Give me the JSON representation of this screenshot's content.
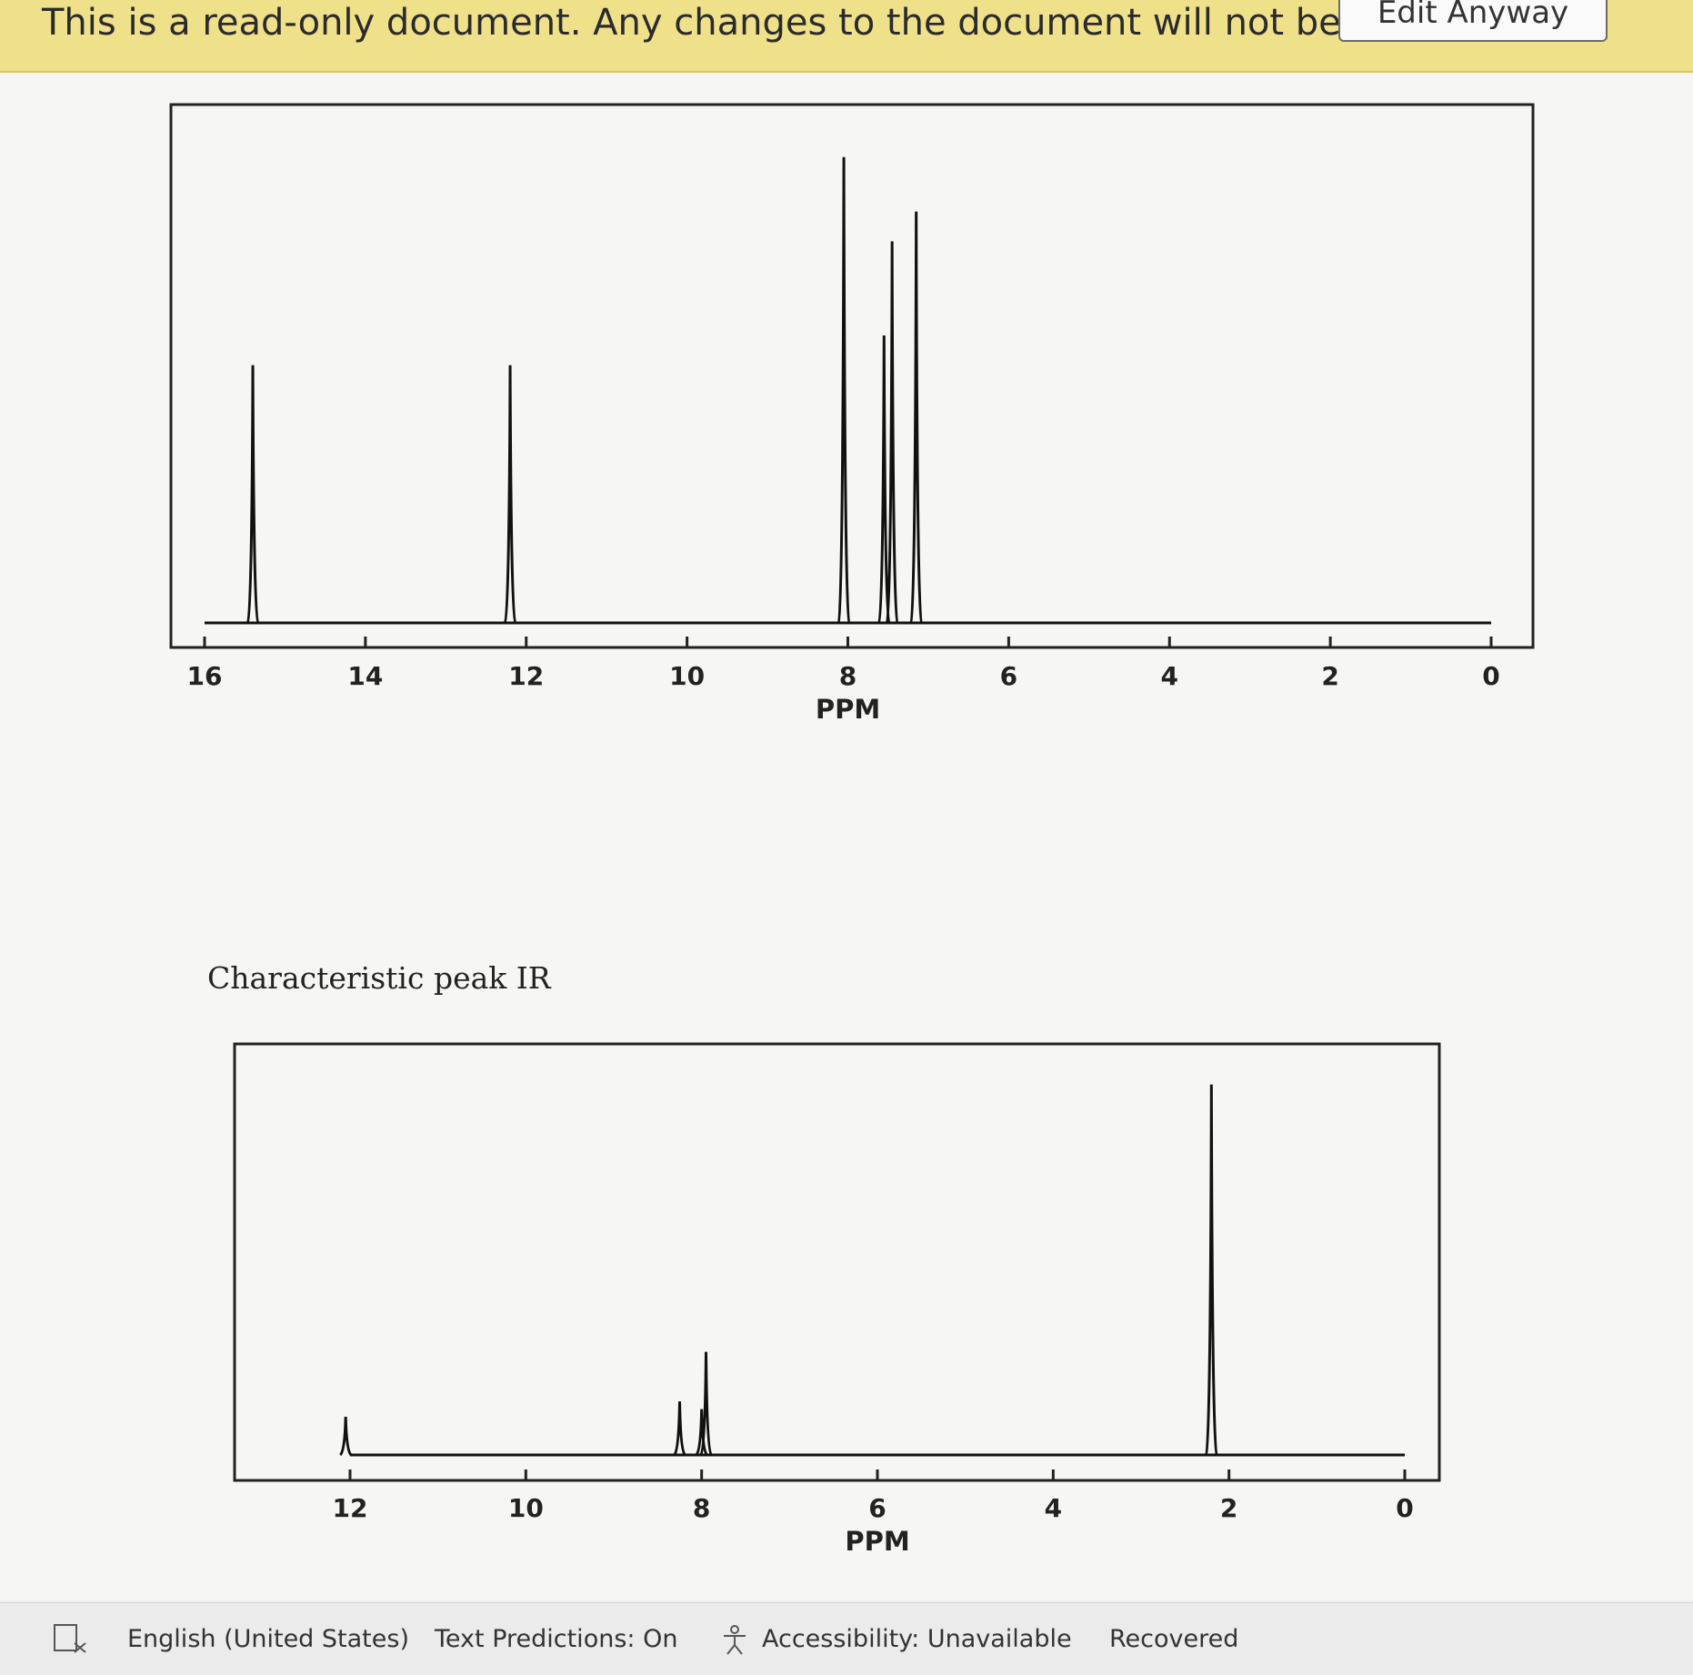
{
  "banner": {
    "message": "This is a read-only document. Any changes to the document will not be saved.",
    "button": "Edit Anyway"
  },
  "document": {
    "caption": "Characteristic peak IR"
  },
  "chart_data": [
    {
      "type": "spectrum",
      "xlabel": "PPM",
      "xlim": [
        16,
        0
      ],
      "xticks": [
        16,
        14,
        12,
        10,
        8,
        6,
        4,
        2,
        0
      ],
      "ylim": [
        0,
        1
      ],
      "color": "#111111",
      "x": [
        15.4,
        12.2,
        8.05,
        7.55,
        7.45,
        7.15
      ],
      "values": [
        0.52,
        0.52,
        0.94,
        0.58,
        0.77,
        0.83
      ]
    },
    {
      "type": "spectrum",
      "xlabel": "PPM",
      "xlim": [
        12,
        0
      ],
      "xticks": [
        12,
        10,
        8,
        6,
        4,
        2,
        0
      ],
      "ylim": [
        0,
        1
      ],
      "color": "#111111",
      "x": [
        12.05,
        8.25,
        8.0,
        7.95,
        2.2
      ],
      "values": [
        0.1,
        0.14,
        0.12,
        0.27,
        0.97
      ]
    }
  ],
  "status_bar": {
    "language": "English (United States)",
    "text_predictions": "Text Predictions: On",
    "accessibility": "Accessibility: Unavailable",
    "status": "Recovered"
  }
}
